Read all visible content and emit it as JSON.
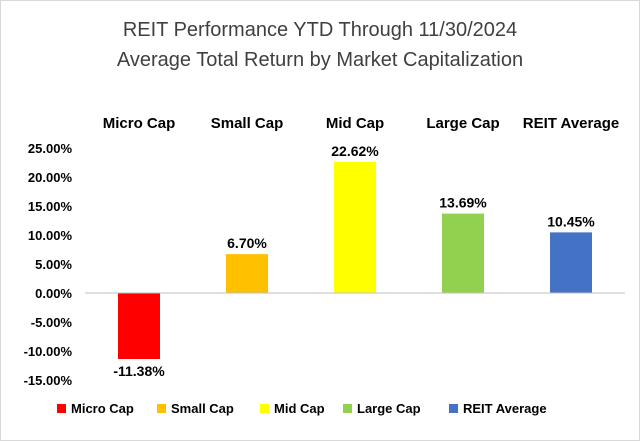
{
  "chart_data": {
    "type": "bar",
    "title": [
      "REIT Performance YTD Through 11/30/2024",
      "Average Total Return by Market Capitalization"
    ],
    "categories": [
      "Micro Cap",
      "Small Cap",
      "Mid Cap",
      "Large Cap",
      "REIT Average"
    ],
    "values": [
      -11.38,
      6.7,
      22.62,
      13.69,
      10.45
    ],
    "value_labels": [
      "-11.38%",
      "6.70%",
      "22.62%",
      "13.69%",
      "10.45%"
    ],
    "colors": [
      "#ff0000",
      "#ffc000",
      "#ffff00",
      "#92d050",
      "#4472c4"
    ],
    "ylim": [
      -15,
      25
    ],
    "y_ticks": [
      25,
      20,
      15,
      10,
      5,
      0,
      -5,
      -10,
      -15
    ],
    "y_tick_labels": [
      "25.00%",
      "20.00%",
      "15.00%",
      "10.00%",
      "5.00%",
      "0.00%",
      "-5.00%",
      "-10.00%",
      "-15.00%"
    ],
    "category_labels_position": "top",
    "grid": false,
    "legend": {
      "position": "bottom",
      "entries": [
        "Micro Cap",
        "Small Cap",
        "Mid Cap",
        "Large Cap",
        "REIT Average"
      ]
    }
  }
}
